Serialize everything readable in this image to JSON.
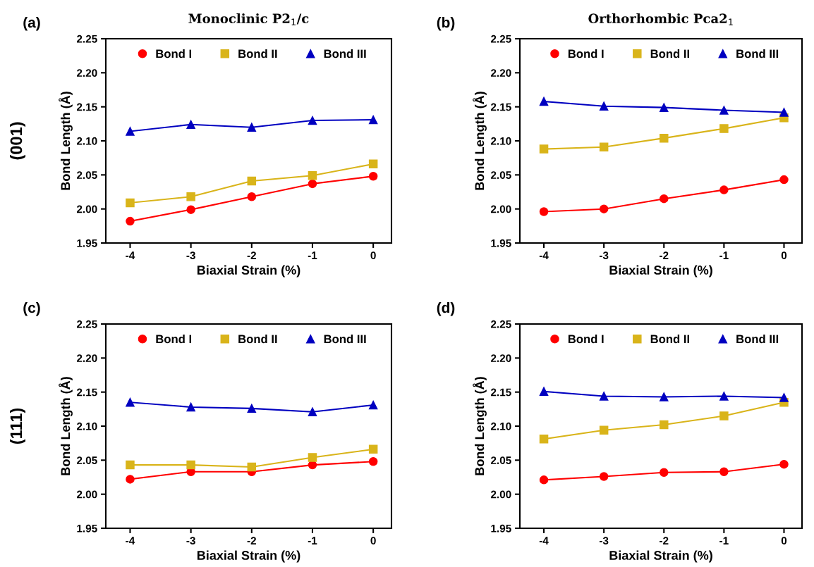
{
  "chart_data": [
    {
      "type": "line",
      "title": "Monoclinic P2$_{1}$/c",
      "xlabel": "Biaxial Strain (%)",
      "ylabel": "Bond Length (Å)",
      "annotations": [
        "(a)",
        "(001)"
      ],
      "x": [
        -4,
        -3,
        -2,
        -1,
        0
      ],
      "xlim": [
        -4.4,
        0.3
      ],
      "xticks": [
        -4,
        -3,
        -2,
        -1,
        0
      ],
      "ylim": [
        1.95,
        2.25
      ],
      "yticks": [
        1.95,
        {
          "value": 2.0,
          "label": "2.00"
        },
        2.05,
        {
          "value": 2.1,
          "label": "2.10"
        },
        2.15,
        {
          "value": 2.2,
          "label": "2.20"
        },
        2.25
      ],
      "grid": false,
      "legend": "top",
      "line_style": "solid",
      "series": [
        {
          "name": "Bond I",
          "color": "#ff0000",
          "marker": "circle",
          "values": [
            1.982,
            1.999,
            2.018,
            2.037,
            2.048
          ]
        },
        {
          "name": "Bond II",
          "color": "#d9b41a",
          "marker": "square",
          "values": [
            2.009,
            2.018,
            2.041,
            2.049,
            2.066
          ]
        },
        {
          "name": "Bond III",
          "color": "#0000c0",
          "marker": "triangle",
          "values": [
            2.114,
            2.124,
            2.12,
            2.13,
            2.131
          ]
        }
      ]
    },
    {
      "type": "line",
      "title": "Orthorhombic Pca2$_{1}$",
      "xlabel": "Biaxial Strain (%)",
      "ylabel": "Bond Length (Å)",
      "annotations": [
        "(b)"
      ],
      "x": [
        -4,
        -3,
        -2,
        -1,
        0
      ],
      "xlim": [
        -4.4,
        0.3
      ],
      "xticks": [
        -4,
        -3,
        -2,
        -1,
        0
      ],
      "ylim": [
        1.95,
        2.25
      ],
      "yticks": [
        1.95,
        {
          "value": 2.0,
          "label": "2.00"
        },
        2.05,
        {
          "value": 2.1,
          "label": "2.10"
        },
        2.15,
        {
          "value": 2.2,
          "label": "2.20"
        },
        2.25
      ],
      "grid": false,
      "legend": "top",
      "line_style": "solid",
      "series": [
        {
          "name": "Bond I",
          "color": "#ff0000",
          "marker": "circle",
          "values": [
            1.996,
            2.0,
            2.015,
            2.028,
            2.043
          ]
        },
        {
          "name": "Bond II",
          "color": "#d9b41a",
          "marker": "square",
          "values": [
            2.088,
            2.091,
            2.104,
            2.118,
            2.134
          ]
        },
        {
          "name": "Bond III",
          "color": "#0000c0",
          "marker": "triangle",
          "values": [
            2.158,
            2.151,
            2.149,
            2.145,
            2.142
          ]
        }
      ]
    },
    {
      "type": "line",
      "xlabel": "Biaxial Strain (%)",
      "ylabel": "Bond Length (Å)",
      "annotations": [
        "(c)",
        "(111)"
      ],
      "x": [
        -4,
        -3,
        -2,
        -1,
        0
      ],
      "xlim": [
        -4.4,
        0.3
      ],
      "xticks": [
        -4,
        -3,
        -2,
        -1,
        0
      ],
      "ylim": [
        1.95,
        2.25
      ],
      "yticks": [
        1.95,
        {
          "value": 2.0,
          "label": "2.00"
        },
        2.05,
        {
          "value": 2.1,
          "label": "2.10"
        },
        2.15,
        {
          "value": 2.2,
          "label": "2.20"
        },
        2.25
      ],
      "grid": false,
      "legend": "top",
      "line_style": "solid",
      "series": [
        {
          "name": "Bond I",
          "color": "#ff0000",
          "marker": "circle",
          "values": [
            2.022,
            2.033,
            2.033,
            2.043,
            2.048
          ]
        },
        {
          "name": "Bond II",
          "color": "#d9b41a",
          "marker": "square",
          "values": [
            2.043,
            2.043,
            2.04,
            2.054,
            2.066
          ]
        },
        {
          "name": "Bond III",
          "color": "#0000c0",
          "marker": "triangle",
          "values": [
            2.135,
            2.128,
            2.126,
            2.121,
            2.131
          ]
        }
      ]
    },
    {
      "type": "line",
      "xlabel": "Biaxial Strain (%)",
      "ylabel": "Bond Length (Å)",
      "annotations": [
        "(d)"
      ],
      "x": [
        -4,
        -3,
        -2,
        -1,
        0
      ],
      "xlim": [
        -4.4,
        0.3
      ],
      "xticks": [
        -4,
        -3,
        -2,
        -1,
        0
      ],
      "ylim": [
        1.95,
        2.25
      ],
      "yticks": [
        1.95,
        {
          "value": 2.0,
          "label": "2.00"
        },
        2.05,
        {
          "value": 2.1,
          "label": "2.10"
        },
        2.15,
        {
          "value": 2.2,
          "label": "2.20"
        },
        2.25
      ],
      "grid": false,
      "legend": "top",
      "line_style": "solid",
      "series": [
        {
          "name": "Bond I",
          "color": "#ff0000",
          "marker": "circle",
          "values": [
            2.021,
            2.026,
            2.032,
            2.033,
            2.044
          ]
        },
        {
          "name": "Bond II",
          "color": "#d9b41a",
          "marker": "square",
          "values": [
            2.081,
            2.094,
            2.102,
            2.115,
            2.135
          ]
        },
        {
          "name": "Bond III",
          "color": "#0000c0",
          "marker": "triangle",
          "values": [
            2.151,
            2.144,
            2.143,
            2.144,
            2.142
          ]
        }
      ]
    }
  ]
}
